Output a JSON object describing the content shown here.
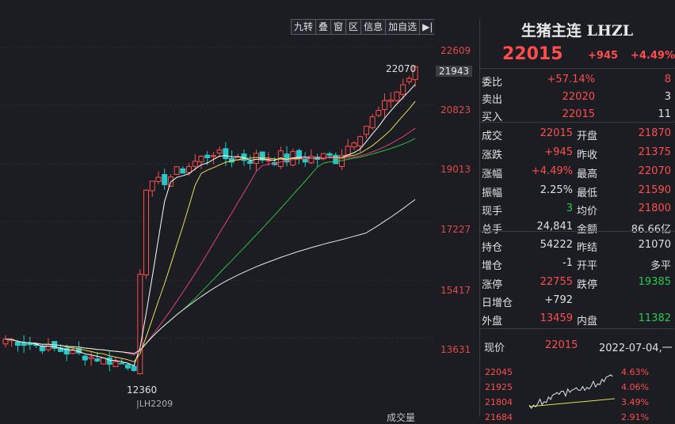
{
  "toolbar": [
    "九转",
    "叠",
    "窗",
    "区",
    "信息",
    "加自选",
    "▶|"
  ],
  "yaxis": [
    "22609",
    "21943",
    "20823",
    "19013",
    "17227",
    "15417",
    "13631"
  ],
  "annotations": {
    "high": "22070",
    "low": "12360",
    "contract": "|LH2209",
    "bottom_label": "成交量"
  },
  "quote": {
    "title": "生猪主连 LHZL",
    "price": "22015",
    "change": "+945",
    "change_pct": "+4.49%",
    "rows": [
      {
        "l1": "委比",
        "v1": "+57.14%",
        "c1": "red",
        "v2": "8",
        "c2": "red"
      },
      {
        "l1": "卖出",
        "v1": "22020",
        "c1": "red",
        "v2": "3",
        "c2": "white"
      },
      {
        "l1": "买入",
        "v1": "22015",
        "c1": "red",
        "v2": "11",
        "c2": "white"
      },
      {
        "l1": "成交",
        "v1": "22015",
        "c1": "red",
        "l2": "开盘",
        "v2": "21870",
        "c2": "red"
      },
      {
        "l1": "涨跌",
        "v1": "+945",
        "c1": "red",
        "l2": "昨收",
        "v2": "21375",
        "c2": "red"
      },
      {
        "l1": "涨幅",
        "v1": "+4.49%",
        "c1": "red",
        "l2": "最高",
        "v2": "22070",
        "c2": "red"
      },
      {
        "l1": "振幅",
        "v1": "2.25%",
        "c1": "white",
        "l2": "最低",
        "v2": "21590",
        "c2": "red"
      },
      {
        "l1": "现手",
        "v1": "3",
        "c1": "green",
        "l2": "均价",
        "v2": "21800",
        "c2": "red"
      },
      {
        "l1": "总手",
        "v1": "24,841",
        "c1": "white",
        "l2": "金额",
        "v2": "86.66亿",
        "c2": "white"
      },
      {
        "l1": "持仓",
        "v1": "54222",
        "c1": "white",
        "l2": "昨结",
        "v2": "21070",
        "c2": "white"
      },
      {
        "l1": "增仓",
        "v1": "-1",
        "c1": "white",
        "l2": "开平",
        "v2": "多平",
        "c2": "white"
      },
      {
        "l1": "涨停",
        "v1": "22755",
        "c1": "red",
        "l2": "跌停",
        "v2": "19385",
        "c2": "green"
      },
      {
        "l1": "日增仓",
        "v1": "+792",
        "c1": "white",
        "l2": "",
        "v2": "",
        "c2": "white"
      },
      {
        "l1": "外盘",
        "v1": "13459",
        "c1": "red",
        "l2": "内盘",
        "v2": "11382",
        "c2": "green"
      }
    ],
    "now_label": "现价",
    "now_price": "22015",
    "date": "2022-07-04,一",
    "mini_left": [
      "22045",
      "21925",
      "21804",
      "21684"
    ],
    "mini_right": [
      "4.63%",
      "4.06%",
      "3.49%",
      "2.91%"
    ]
  },
  "colors": {
    "up": "#ff4d4d",
    "down": "#28c8c8",
    "ma5": "#ffffff",
    "ma10": "#e8e050",
    "ma20": "#e0407a",
    "ma60": "#30c040",
    "ma120": "#e8e8e8"
  }
}
